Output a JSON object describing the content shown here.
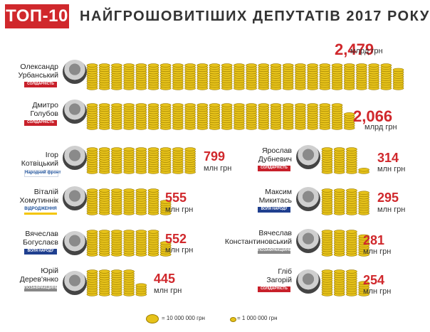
{
  "header": {
    "badge": "ТОП-10",
    "title": "НАЙГРОШОВИТІШИХ ДЕПУТАТІВ 2017 РОКУ"
  },
  "colors": {
    "accent": "#d0282c",
    "coin": "#e6c21a",
    "coin_edge": "#9c7d00"
  },
  "legend": {
    "large": "= 10 000 000 грн",
    "small": "= 1 000 000 грн"
  },
  "chart_data": {
    "type": "bar",
    "title": "НАЙГРОШОВИТІШИХ ДЕПУТАТІВ 2017 РОКУ",
    "unit_note": "1 large coin stack = 10 000 000 грн; 1 small coin = 1 000 000 грн",
    "categories": [
      "Олександр Урбанський",
      "Дмитро Голубов",
      "Ігор Котвіцький",
      "Віталій Хомутиннік",
      "Вячеслав Богуслаєв",
      "Юрій Дерев'янко",
      "Ярослав Дубневич",
      "Максим Микитась",
      "Вячеслав Константиновський",
      "Гліб Загорій"
    ],
    "values_mln": [
      2479,
      2066,
      799,
      555,
      552,
      445,
      314,
      295,
      281,
      254
    ],
    "rows": [
      {
        "first": "Олександр",
        "last": "Урбанський",
        "party": "СОЛІДАРНІСТЬ",
        "party_style": "sol",
        "value": "2,479",
        "unit": "млрд грн",
        "amount_mln": 2479
      },
      {
        "first": "Дмитро",
        "last": "Голубов",
        "party": "СОЛІДАРНІСТЬ",
        "party_style": "sol",
        "value": "2,066",
        "unit": "млрд грн",
        "amount_mln": 2066
      },
      {
        "first": "Ігор",
        "last": "Котвіцький",
        "party": "Народний фронт",
        "party_style": "nf",
        "value": "799",
        "unit": "млн грн",
        "amount_mln": 799
      },
      {
        "first": "Віталій",
        "last": "Хомутиннік",
        "party": "ВІДРОДЖЕННЯ",
        "party_style": "vr",
        "value": "555",
        "unit": "млн грн",
        "amount_mln": 555
      },
      {
        "first": "Вячеслав",
        "last": "Богуслаєв",
        "party": "ВОЛЯ НАРОДУ",
        "party_style": "nadia",
        "value": "552",
        "unit": "млн грн",
        "amount_mln": 552
      },
      {
        "first": "Юрій",
        "last": "Дерев'янко",
        "party": "ПОЗАФРАКЦІЙНИЙ",
        "party_style": "gray",
        "value": "445",
        "unit": "млн грн",
        "amount_mln": 445
      },
      {
        "first": "Ярослав",
        "last": "Дубневич",
        "party": "СОЛІДАРНІСТЬ",
        "party_style": "sol",
        "value": "314",
        "unit": "млн грн",
        "amount_mln": 314
      },
      {
        "first": "Максим",
        "last": "Микитась",
        "party": "ВОЛЯ НАРОДУ",
        "party_style": "nadia",
        "value": "295",
        "unit": "млн грн",
        "amount_mln": 295
      },
      {
        "first": "Вячеслав",
        "last": "Константиновський",
        "party": "ПОЗАФРАКЦІЙНИЙ",
        "party_style": "gray",
        "value": "281",
        "unit": "млн грн",
        "amount_mln": 281
      },
      {
        "first": "Гліб",
        "last": "Загорій",
        "party": "СОЛІДАРНІСТЬ",
        "party_style": "sol",
        "value": "254",
        "unit": "млн грн",
        "amount_mln": 254
      }
    ]
  }
}
